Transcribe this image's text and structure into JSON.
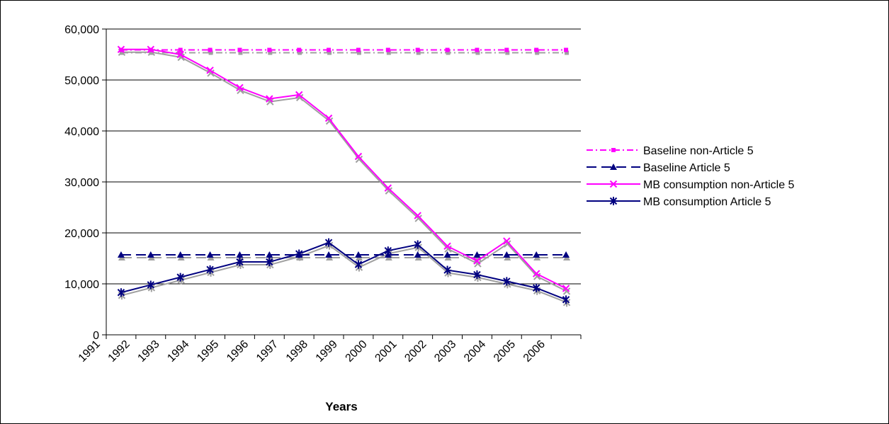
{
  "chart_data": {
    "type": "line",
    "xlabel": "Years",
    "ylabel": "",
    "title": "",
    "ylim": [
      0,
      60000
    ],
    "yticks": [
      "0",
      "10,000",
      "20,000",
      "30,000",
      "40,000",
      "50,000",
      "60,000"
    ],
    "ytick_values": [
      0,
      10000,
      20000,
      30000,
      40000,
      50000,
      60000
    ],
    "categories": [
      "1991",
      "1992",
      "1993",
      "1994",
      "1995",
      "1996",
      "1997",
      "1998",
      "1999",
      "2000",
      "2001",
      "2002",
      "2003",
      "2004",
      "2005",
      "2006"
    ],
    "grid": "horizontal",
    "legend_position": "right",
    "series": [
      {
        "name": "Baseline non-Article 5",
        "color": "#ff00ff",
        "style": "dash-dot",
        "marker": "square",
        "values": [
          55900,
          55900,
          55900,
          55900,
          55900,
          55900,
          55900,
          55900,
          55900,
          55900,
          55900,
          55900,
          55900,
          55900,
          55900,
          55900
        ]
      },
      {
        "name": "Baseline Article 5",
        "color": "#000080",
        "style": "dashed",
        "marker": "triangle",
        "values": [
          15700,
          15700,
          15700,
          15700,
          15700,
          15700,
          15700,
          15700,
          15700,
          15700,
          15700,
          15700,
          15700,
          15700,
          15700,
          15700
        ]
      },
      {
        "name": "MB consumption non-Article 5",
        "color": "#ff00ff",
        "style": "solid",
        "marker": "x",
        "values": [
          56000,
          56000,
          55000,
          51900,
          48500,
          46300,
          47100,
          42500,
          35000,
          28800,
          23400,
          17400,
          14500,
          18400,
          12000,
          9100
        ]
      },
      {
        "name": "MB consumption Article 5",
        "color": "#000080",
        "style": "solid",
        "marker": "star",
        "values": [
          8300,
          9800,
          11300,
          12800,
          14300,
          14300,
          15900,
          18100,
          13800,
          16500,
          17700,
          12700,
          11800,
          10500,
          9200,
          6900
        ]
      }
    ]
  }
}
